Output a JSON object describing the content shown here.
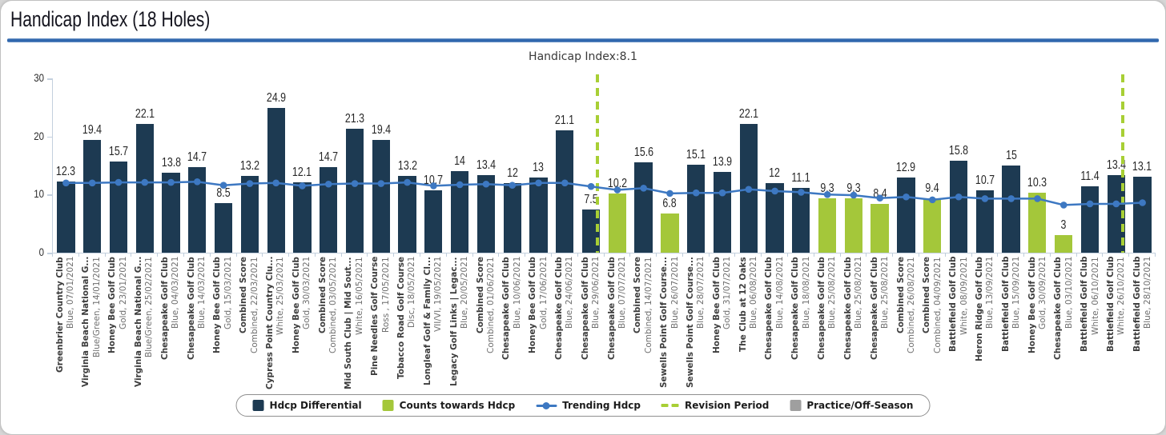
{
  "header": {
    "title": "Handicap Index (18 Holes)"
  },
  "chart_data": {
    "type": "bar",
    "title": "Handicap Index:8.1",
    "handicap_index": "8.1",
    "ylim": [
      0,
      30
    ],
    "yticks": [
      0,
      10,
      20,
      30
    ],
    "revision_boundaries": [
      21,
      41
    ],
    "colors": {
      "differential_bar": "#1d3a52",
      "counts_bar": "#a4c73a",
      "trend_line": "#3d78c2",
      "revision_line": "#a8cf35",
      "practice": "#9f9f9f",
      "axis": "#c3d0de",
      "accent_rule": "#2f66ad"
    },
    "rounds": [
      {
        "course": "Greenbrier Country Club",
        "detail": "Blue, 07/01/2021",
        "value": "12.3",
        "counts": false
      },
      {
        "course": "Virginia Beach National G...",
        "detail": "Blue/Green, 14/01/2021",
        "value": "19.4",
        "counts": false
      },
      {
        "course": "Honey Bee Golf Club",
        "detail": "Gold, 23/01/2021",
        "value": "15.7",
        "counts": false
      },
      {
        "course": "Virginia Beach National G...",
        "detail": "Blue/Green, 25/02/2021",
        "value": "22.1",
        "counts": false
      },
      {
        "course": "Chesapeake Golf Club",
        "detail": "Blue, 04/03/2021",
        "value": "13.8",
        "counts": false
      },
      {
        "course": "Chesapeake Golf Club",
        "detail": "Blue, 14/03/2021",
        "value": "14.7",
        "counts": false
      },
      {
        "course": "Honey Bee Golf Club",
        "detail": "Gold, 15/03/2021",
        "value": "8.5",
        "counts": false
      },
      {
        "course": "Combined Score",
        "detail": "Combined, 22/03/2021",
        "value": "13.2",
        "counts": false
      },
      {
        "course": "Cypress Point Country Clu...",
        "detail": "White, 25/03/2021",
        "value": "24.9",
        "counts": false
      },
      {
        "course": "Honey Bee Golf Club",
        "detail": "Gold, 30/03/2021",
        "value": "12.1",
        "counts": false
      },
      {
        "course": "Combined Score",
        "detail": "Combined, 03/05/2021",
        "value": "14.7",
        "counts": false
      },
      {
        "course": "Mid South Club | Mid Sout...",
        "detail": "White, 16/05/2021",
        "value": "21.3",
        "counts": false
      },
      {
        "course": "Pine Needles Golf Course",
        "detail": "Ross , 17/05/2021",
        "value": "19.4",
        "counts": false
      },
      {
        "course": "Tobacco Road Golf Course",
        "detail": "Disc, 18/05/2021",
        "value": "13.2",
        "counts": false
      },
      {
        "course": "Longleaf Golf & Family Cl...",
        "detail": "VII/VI, 19/05/2021",
        "value": "10.7",
        "counts": false
      },
      {
        "course": "Legacy Golf Links | Legac...",
        "detail": "Blue, 20/05/2021",
        "value": "14",
        "counts": false
      },
      {
        "course": "Combined Score",
        "detail": "Combined, 01/06/2021",
        "value": "13.4",
        "counts": false
      },
      {
        "course": "Chesapeake Golf Club",
        "detail": "Blue, 10/06/2021",
        "value": "12",
        "counts": false
      },
      {
        "course": "Honey Bee Golf Club",
        "detail": "Gold, 17/06/2021",
        "value": "13",
        "counts": false
      },
      {
        "course": "Chesapeake Golf Club",
        "detail": "Blue, 24/06/2021",
        "value": "21.1",
        "counts": false
      },
      {
        "course": "Chesapeake Golf Club",
        "detail": "Blue, 29/06/2021",
        "value": "7.5",
        "counts": false
      },
      {
        "course": "Chesapeake Golf Club",
        "detail": "Blue, 07/07/2021",
        "value": "10.2",
        "counts": true
      },
      {
        "course": "Combined Score",
        "detail": "Combined, 14/07/2021",
        "value": "15.6",
        "counts": false
      },
      {
        "course": "Sewells Point Golf Course...",
        "detail": "Blue, 26/07/2021",
        "value": "6.8",
        "counts": true
      },
      {
        "course": "Sewells Point Golf Course...",
        "detail": "Blue, 28/07/2021",
        "value": "15.1",
        "counts": false
      },
      {
        "course": "Honey Bee Golf Club",
        "detail": "Gold, 31/07/2021",
        "value": "13.9",
        "counts": false
      },
      {
        "course": "The Club at 12 Oaks",
        "detail": "Blue, 06/08/2021",
        "value": "22.1",
        "counts": false
      },
      {
        "course": "Chesapeake Golf Club",
        "detail": "Blue, 14/08/2021",
        "value": "12",
        "counts": false
      },
      {
        "course": "Chesapeake Golf Club",
        "detail": "Blue, 18/08/2021",
        "value": "11.1",
        "counts": false
      },
      {
        "course": "Chesapeake Golf Club",
        "detail": "Blue, 25/08/2021",
        "value": "9.3",
        "counts": true
      },
      {
        "course": "Chesapeake Golf Club",
        "detail": "Blue, 25/08/2021",
        "value": "9.3",
        "counts": true
      },
      {
        "course": "Chesapeake Golf Club",
        "detail": "Blue, 25/08/2021",
        "value": "8.4",
        "counts": true
      },
      {
        "course": "Combined Score",
        "detail": "Combined, 26/08/2021",
        "value": "12.9",
        "counts": false
      },
      {
        "course": "Combined Score",
        "detail": "Combined, 04/09/2021",
        "value": "9.4",
        "counts": true
      },
      {
        "course": "Battlefield Golf Club",
        "detail": "White, 08/09/2021",
        "value": "15.8",
        "counts": false
      },
      {
        "course": "Heron Ridge Golf Club",
        "detail": "Blue, 13/09/2021",
        "value": "10.7",
        "counts": false
      },
      {
        "course": "Battlefield Golf Club",
        "detail": "Blue, 15/09/2021",
        "value": "15",
        "counts": false
      },
      {
        "course": "Honey Bee Golf Club",
        "detail": "Gold, 30/09/2021",
        "value": "10.3",
        "counts": true
      },
      {
        "course": "Chesapeake Golf Club",
        "detail": "Blue, 03/10/2021",
        "value": "3",
        "counts": true
      },
      {
        "course": "Battlefield Golf Club",
        "detail": "White, 06/10/2021",
        "value": "11.4",
        "counts": false
      },
      {
        "course": "Battlefield Golf Club",
        "detail": "White, 26/10/2021",
        "value": "13.4",
        "counts": false
      },
      {
        "course": "Battlefield Golf Club",
        "detail": "Blue, 28/10/2021",
        "value": "13.1",
        "counts": false
      }
    ],
    "trending": [
      12.0,
      12.0,
      12.1,
      12.1,
      12.1,
      12.2,
      11.6,
      11.9,
      12.0,
      11.5,
      11.8,
      11.9,
      11.9,
      12.1,
      11.5,
      11.7,
      11.8,
      11.6,
      12.0,
      12.0,
      11.4,
      10.8,
      11.1,
      10.2,
      10.3,
      10.3,
      10.9,
      10.6,
      10.4,
      10.0,
      9.9,
      9.4,
      9.6,
      9.1,
      9.6,
      9.3,
      9.3,
      9.3,
      8.2,
      8.4,
      8.4,
      8.6
    ]
  },
  "legend": {
    "items": [
      {
        "type": "bar-navy",
        "label": "Hdcp Differential"
      },
      {
        "type": "bar-green",
        "label": "Counts towards Hdcp"
      },
      {
        "type": "line",
        "label": "Trending Hdcp"
      },
      {
        "type": "dash",
        "label": "Revision Period"
      },
      {
        "type": "bar-gray",
        "label": "Practice/Off-Season"
      }
    ]
  }
}
